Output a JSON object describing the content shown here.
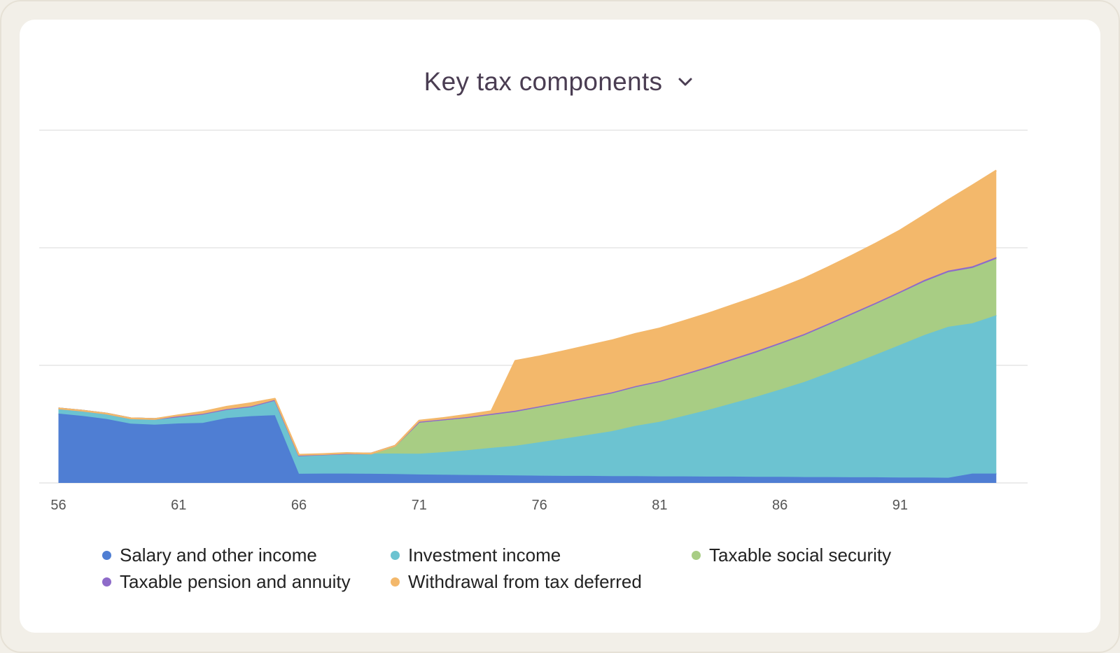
{
  "header": {
    "title": "Key tax components"
  },
  "colors": {
    "salary": "#4f7ed3",
    "investment": "#6cc3d1",
    "social_security": "#a8cd84",
    "pension": "#8e6bc9",
    "withdrawal": "#f3b86b",
    "gridline": "#ececec"
  },
  "chart_data": {
    "type": "area",
    "stacked": true,
    "title": "Key tax components",
    "xlabel": "",
    "ylabel": "",
    "grid": true,
    "legend_position": "bottom",
    "xlim": [
      55.2,
      96.3
    ],
    "ylim": [
      0,
      150
    ],
    "x_ticks": [
      "56",
      "61",
      "66",
      "71",
      "76",
      "81",
      "86",
      "91"
    ],
    "x": [
      56,
      57,
      58,
      59,
      60,
      61,
      62,
      63,
      64,
      65,
      66,
      67,
      68,
      69,
      70,
      71,
      72,
      73,
      74,
      75,
      76,
      77,
      78,
      79,
      80,
      81,
      82,
      83,
      84,
      85,
      86,
      87,
      88,
      89,
      90,
      91,
      92,
      93,
      94,
      95
    ],
    "series": [
      {
        "name": "Salary and other income",
        "color_key": "salary",
        "values": [
          29.5,
          28.5,
          27.2,
          25.2,
          24.8,
          25.3,
          25.5,
          27.6,
          28.4,
          28.8,
          3.9,
          4.0,
          4.0,
          3.9,
          3.8,
          3.6,
          3.5,
          3.4,
          3.3,
          3.2,
          3.1,
          3.0,
          3.0,
          2.9,
          2.9,
          2.8,
          2.8,
          2.7,
          2.7,
          2.6,
          2.6,
          2.5,
          2.5,
          2.4,
          2.4,
          2.3,
          2.3,
          2.2,
          4.0,
          4.0
        ]
      },
      {
        "name": "Investment income",
        "color_key": "investment",
        "values": [
          2.2,
          2.2,
          2.3,
          2.3,
          2.4,
          3.0,
          3.9,
          3.8,
          4.2,
          6.5,
          7.8,
          8.1,
          8.5,
          8.6,
          8.7,
          8.8,
          9.6,
          10.5,
          11.6,
          12.6,
          14.2,
          15.8,
          17.4,
          19.1,
          21.4,
          23.2,
          25.7,
          28.3,
          31.1,
          34.0,
          37.1,
          40.4,
          44.2,
          48.2,
          52.2,
          56.4,
          60.6,
          64.2,
          63.9,
          67.3
        ]
      },
      {
        "name": "Taxable social security",
        "color_key": "social_security",
        "values": [
          0,
          0,
          0,
          0,
          0,
          0,
          0,
          0,
          0,
          0,
          0,
          0,
          0,
          0,
          3.3,
          13.2,
          13.5,
          13.7,
          14.0,
          14.4,
          14.8,
          15.2,
          15.6,
          16.0,
          16.4,
          16.9,
          17.3,
          17.8,
          18.3,
          18.8,
          19.3,
          19.8,
          20.4,
          21.0,
          21.5,
          22.1,
          22.7,
          23.2,
          23.5,
          24.0
        ]
      },
      {
        "name": "Taxable pension and annuity",
        "color_key": "pension",
        "values": [
          0,
          0,
          0,
          0,
          0,
          0,
          0,
          0,
          0,
          0,
          0,
          0,
          0,
          0,
          0,
          0.4,
          0.4,
          0.4,
          0.5,
          0.5,
          0.5,
          0.5,
          0.5,
          0.5,
          0.5,
          0.5,
          0.5,
          0.6,
          0.6,
          0.6,
          0.6,
          0.6,
          0.6,
          0.6,
          0.6,
          0.6,
          0.7,
          0.7,
          0.7,
          0.7
        ]
      },
      {
        "name": "Withdrawal from tax deferred",
        "color_key": "withdrawal",
        "values": [
          0,
          0,
          0,
          0,
          0,
          0.5,
          0.8,
          1.0,
          1.3,
          0.5,
          0.3,
          0.2,
          0.2,
          0,
          0,
          0.5,
          0.6,
          1.0,
          1.1,
          21.2,
          21.2,
          21.5,
          21.8,
          22.1,
          22.2,
          22.3,
          22.5,
          22.6,
          22.8,
          23.0,
          23.2,
          23.6,
          24.0,
          24.5,
          25.2,
          26.0,
          27.5,
          30.0,
          34.4,
          36.9
        ]
      }
    ]
  }
}
